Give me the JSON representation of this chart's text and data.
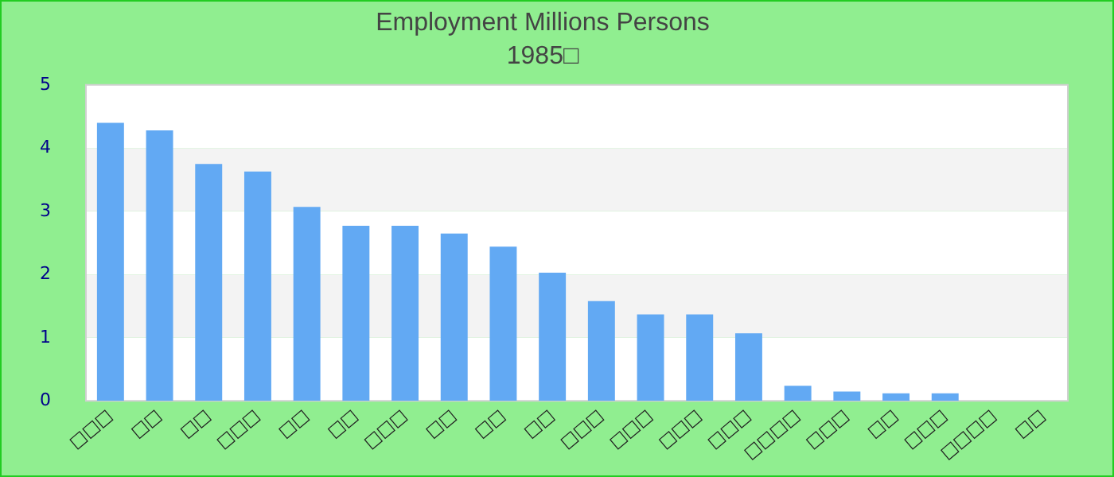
{
  "chart_data": {
    "type": "bar",
    "title": "Employment Millions Persons",
    "subtitle": "1985□",
    "categories": [
      "□□□",
      "□□",
      "□□",
      "□□□",
      "□□",
      "□□",
      "□□□",
      "□□",
      "□□",
      "□□",
      "□□□",
      "□□□",
      "□□□",
      "□□□",
      "□□□□",
      "□□□",
      "□□",
      "□□□",
      "□□□□",
      "□□"
    ],
    "values": [
      4.4,
      4.28,
      3.75,
      3.63,
      3.07,
      2.77,
      2.77,
      2.65,
      2.44,
      2.03,
      1.58,
      1.37,
      1.37,
      1.07,
      0.24,
      0.15,
      0.12,
      0.12,
      0,
      0
    ],
    "color": "#62a9f3",
    "ylim": [
      0,
      5
    ],
    "yticks": [
      0,
      1,
      2,
      3,
      4,
      5
    ],
    "grid": false,
    "legend": false
  }
}
